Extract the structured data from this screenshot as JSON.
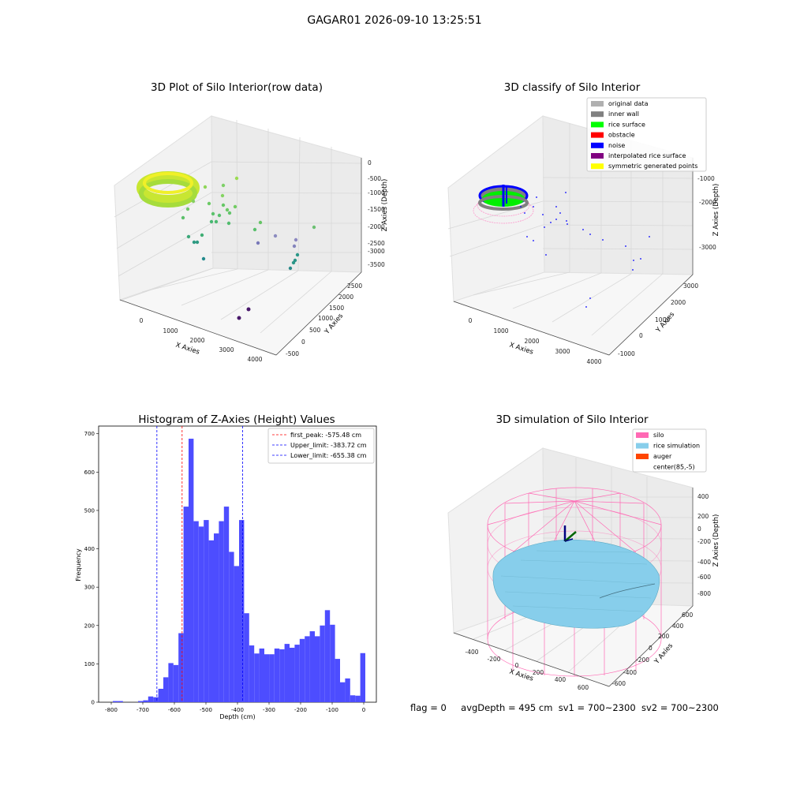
{
  "suptitle": "GAGAR01 2026-09-10 13:25:51",
  "panel1": {
    "title": "3D Plot of Silo Interior(row data)",
    "x_label": "X Axies",
    "y_label": "Y Axies",
    "z_label": "Z Axies (Depth)",
    "x_ticks": [
      "0",
      "1000",
      "2000",
      "3000",
      "4000"
    ],
    "y_ticks": [
      "-500",
      "0",
      "500",
      "1000",
      "1500",
      "2000",
      "2500"
    ],
    "z_ticks": [
      "0",
      "-500",
      "-1000",
      "-1500",
      "-2000",
      "-2500",
      "-3000",
      "-3500"
    ]
  },
  "panel2": {
    "title": "3D classify of Silo Interior",
    "x_label": "X Axies",
    "y_label": "Y Axies",
    "z_label": "Z Axies (Depth)",
    "x_ticks": [
      "0",
      "1000",
      "2000",
      "3000",
      "4000"
    ],
    "y_ticks": [
      "-1000",
      "0",
      "1000",
      "2000",
      "3000"
    ],
    "z_ticks": [
      "-1000",
      "-2000",
      "-3000"
    ],
    "legend": [
      {
        "label": "original data",
        "color": "#b0b0b0"
      },
      {
        "label": "inner wall",
        "color": "#808080"
      },
      {
        "label": "rice surface",
        "color": "#00ff00"
      },
      {
        "label": "obstacle",
        "color": "#ff0000"
      },
      {
        "label": "noise",
        "color": "#0000ff"
      },
      {
        "label": "interpolated rice surface",
        "color": "#800080"
      },
      {
        "label": "symmetric generated points",
        "color": "#ffff00"
      }
    ]
  },
  "panel4": {
    "title": "3D simulation of Silo Interior",
    "x_label": "X Axies",
    "y_label": "Y Axies",
    "z_label": "Z Axies (Depth)",
    "x_ticks": [
      "-400",
      "-200",
      "0",
      "200",
      "400",
      "600"
    ],
    "y_ticks": [
      "-600",
      "-400",
      "-200",
      "0",
      "200",
      "400",
      "600"
    ],
    "z_ticks": [
      "400",
      "200",
      "0",
      "-200",
      "-400",
      "-600",
      "-800"
    ],
    "legend": [
      {
        "label": "silo",
        "color": "#ff69b4"
      },
      {
        "label": "rice simulation",
        "color": "#87ceeb"
      },
      {
        "label": "auger",
        "color": "#ff4500"
      },
      {
        "label": "center(85,-5)",
        "color": ""
      }
    ]
  },
  "footer": {
    "flag": "flag = 0",
    "avg": "avgDepth = 495 cm",
    "sv1": "sv1 = 700~2300",
    "sv2": "sv2 = 700~2300"
  },
  "chart_data": [
    {
      "type": "scatter",
      "title": "3D Plot of Silo Interior(row data)",
      "xlabel": "X Axies",
      "ylabel": "Y Axies",
      "zlabel": "Z Axies (Depth)",
      "xlim": [
        -500,
        4200
      ],
      "ylim": [
        -700,
        2700
      ],
      "zlim": [
        -3700,
        200
      ]
    },
    {
      "type": "scatter",
      "title": "3D classify of Silo Interior",
      "xlabel": "X Axies",
      "ylabel": "Y Axies",
      "zlabel": "Z Axies (Depth)",
      "series": [
        {
          "name": "original data"
        },
        {
          "name": "inner wall"
        },
        {
          "name": "rice surface"
        },
        {
          "name": "obstacle"
        },
        {
          "name": "noise"
        },
        {
          "name": "interpolated rice surface"
        },
        {
          "name": "symmetric generated points"
        }
      ]
    },
    {
      "type": "bar",
      "title": "Histogram of Z-Axies (Height) Values",
      "xlabel": "Depth (cm)",
      "ylabel": "Frequency",
      "xlim": [
        -840,
        40
      ],
      "ylim": [
        0,
        720
      ],
      "x_ticks": [
        -800,
        -700,
        -600,
        -500,
        -400,
        -300,
        -200,
        -100,
        0
      ],
      "y_ticks": [
        0,
        100,
        200,
        300,
        400,
        500,
        600,
        700
      ],
      "bin_start": -795,
      "bin_width": 16,
      "values": [
        3,
        3,
        0,
        0,
        0,
        3,
        5,
        15,
        13,
        35,
        65,
        102,
        97,
        180,
        510,
        687,
        472,
        458,
        475,
        422,
        440,
        472,
        510,
        392,
        355,
        475,
        232,
        148,
        127,
        140,
        125,
        125,
        140,
        138,
        152,
        142,
        150,
        165,
        172,
        185,
        172,
        200,
        240,
        202,
        113,
        52,
        62,
        18,
        17,
        128
      ],
      "lines": [
        {
          "label": "first_peak: -575.48 cm",
          "x": -575.48,
          "color": "#ff0000"
        },
        {
          "label": "Upper_limit: -383.72 cm",
          "x": -383.72,
          "color": "#0000ff"
        },
        {
          "label": "Lower_limit: -655.38 cm",
          "x": -655.38,
          "color": "#0000ff"
        }
      ],
      "bar_color": "#4d4dff"
    },
    {
      "type": "area",
      "title": "3D simulation of Silo Interior",
      "xlabel": "X Axies",
      "ylabel": "Y Axies",
      "zlabel": "Z Axies (Depth)",
      "series": [
        {
          "name": "silo"
        },
        {
          "name": "rice simulation"
        },
        {
          "name": "auger"
        },
        {
          "name": "center(85,-5)"
        }
      ]
    }
  ]
}
